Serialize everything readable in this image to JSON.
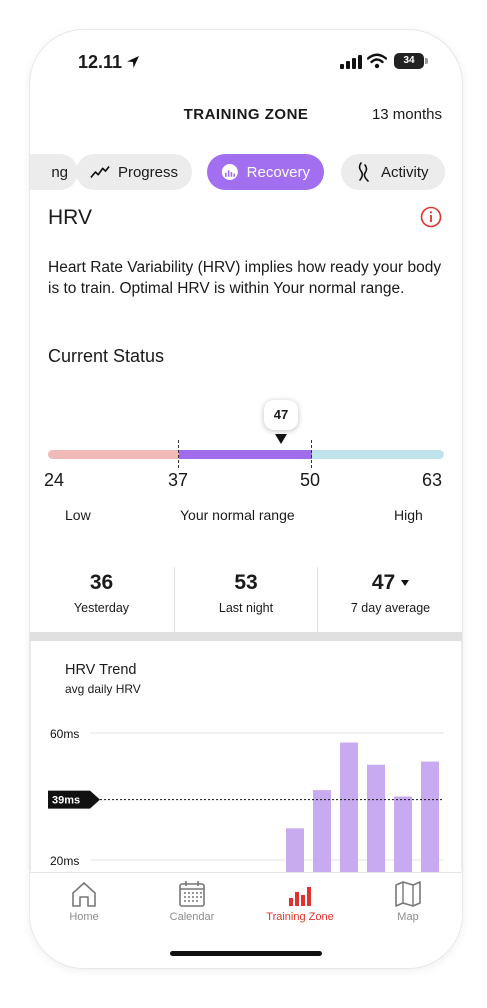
{
  "status_bar": {
    "time": "12.11",
    "battery": "34"
  },
  "header": {
    "title": "TRAINING ZONE",
    "range": "13 months"
  },
  "tabs": [
    {
      "label": "ng",
      "icon": "hidden-tab-icon"
    },
    {
      "label": "Progress",
      "icon": "trend-icon"
    },
    {
      "label": "Recovery",
      "icon": "gauge-icon",
      "active": true
    },
    {
      "label": "Activity",
      "icon": "activity-icon"
    }
  ],
  "section": {
    "title": "HRV",
    "description": "Heart Rate Variability (HRV) implies how ready your body is to train. Optimal HRV is within Your normal range."
  },
  "current_status": {
    "title": "Current Status",
    "value": "47",
    "ticks": [
      "24",
      "37",
      "50",
      "63"
    ],
    "ranges": {
      "low": "Low",
      "normal": "Your normal range",
      "high": "High"
    },
    "colors": {
      "low": "#f2b9b9",
      "normal": "#9f6cec",
      "high": "#bfe3ea"
    }
  },
  "stats": [
    {
      "value": "36",
      "label": "Yesterday"
    },
    {
      "value": "53",
      "label": "Last night"
    },
    {
      "value": "47",
      "label": "7 day average"
    }
  ],
  "trend": {
    "title": "HRV Trend",
    "subtitle": "avg daily HRV",
    "y_labels": [
      "60ms",
      "39ms",
      "20ms"
    ]
  },
  "chart_data": {
    "type": "bar",
    "title": "HRV Trend",
    "subtitle": "avg daily HRV",
    "y_unit": "ms",
    "gridlines": [
      60,
      20
    ],
    "reference_line": 39,
    "values": [
      30,
      42,
      57,
      50,
      40,
      51
    ],
    "color": "#c7aaf0"
  },
  "nav": [
    {
      "label": "Home",
      "icon": "home-icon"
    },
    {
      "label": "Calendar",
      "icon": "calendar-icon"
    },
    {
      "label": "Training Zone",
      "icon": "bar-chart-icon",
      "active": true
    },
    {
      "label": "Map",
      "icon": "map-icon"
    }
  ],
  "colors": {
    "accent": "#a26ff0",
    "active_nav": "#e2322e",
    "info": "#e2322e"
  }
}
